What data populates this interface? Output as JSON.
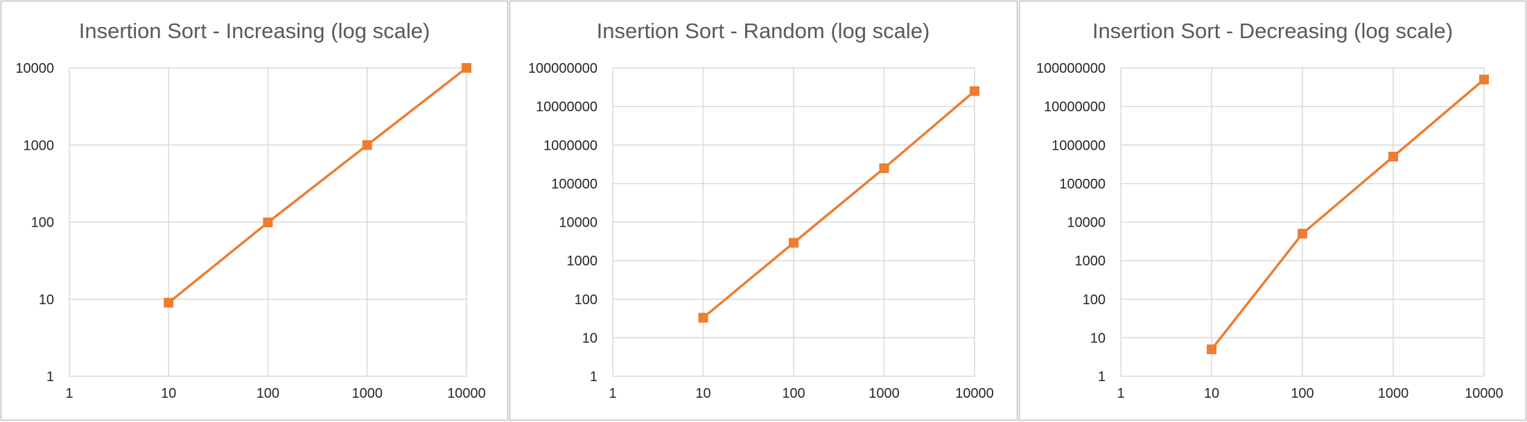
{
  "colors": {
    "series": "#ED7D31",
    "gridline": "#D9D9D9",
    "title": "#595959",
    "tick_text": "#262626",
    "panel_border": "#BFBFBF",
    "background": "#FFFFFF"
  },
  "chart_data": [
    {
      "type": "line",
      "title": "Insertion Sort - Increasing (log scale)",
      "xlabel": "",
      "ylabel": "",
      "x_scale": "log",
      "y_scale": "log",
      "xlim": [
        1,
        10000
      ],
      "ylim": [
        1,
        10000
      ],
      "x_ticks": [
        "1",
        "10",
        "100",
        "1000",
        "10000"
      ],
      "y_ticks": [
        "1",
        "10",
        "100",
        "1000",
        "10000"
      ],
      "grid": true,
      "legend": "none",
      "marker": "square",
      "series": [
        {
          "x": [
            10,
            100,
            1000,
            10000
          ],
          "y": [
            9,
            99,
            999,
            9999
          ]
        }
      ]
    },
    {
      "type": "line",
      "title": "Insertion Sort - Random (log scale)",
      "xlabel": "",
      "ylabel": "",
      "x_scale": "log",
      "y_scale": "log",
      "xlim": [
        1,
        10000
      ],
      "ylim": [
        1,
        100000000
      ],
      "x_ticks": [
        "1",
        "10",
        "100",
        "1000",
        "10000"
      ],
      "y_ticks": [
        "1",
        "10",
        "100",
        "1000",
        "10000",
        "100000",
        "1000000",
        "10000000",
        "100000000"
      ],
      "grid": true,
      "legend": "none",
      "marker": "square",
      "series": [
        {
          "x": [
            10,
            100,
            1000,
            10000
          ],
          "y": [
            33,
            2900,
            250000,
            25000000
          ]
        }
      ]
    },
    {
      "type": "line",
      "title": "Insertion Sort - Decreasing (log scale)",
      "xlabel": "",
      "ylabel": "",
      "x_scale": "log",
      "y_scale": "log",
      "xlim": [
        1,
        10000
      ],
      "ylim": [
        1,
        100000000
      ],
      "x_ticks": [
        "1",
        "10",
        "100",
        "1000",
        "10000"
      ],
      "y_ticks": [
        "1",
        "10",
        "100",
        "1000",
        "10000",
        "100000",
        "1000000",
        "10000000",
        "100000000"
      ],
      "grid": true,
      "legend": "none",
      "marker": "square",
      "series": [
        {
          "x": [
            10,
            100,
            1000,
            10000
          ],
          "y": [
            5,
            5000,
            500000,
            50000000
          ]
        }
      ]
    }
  ]
}
